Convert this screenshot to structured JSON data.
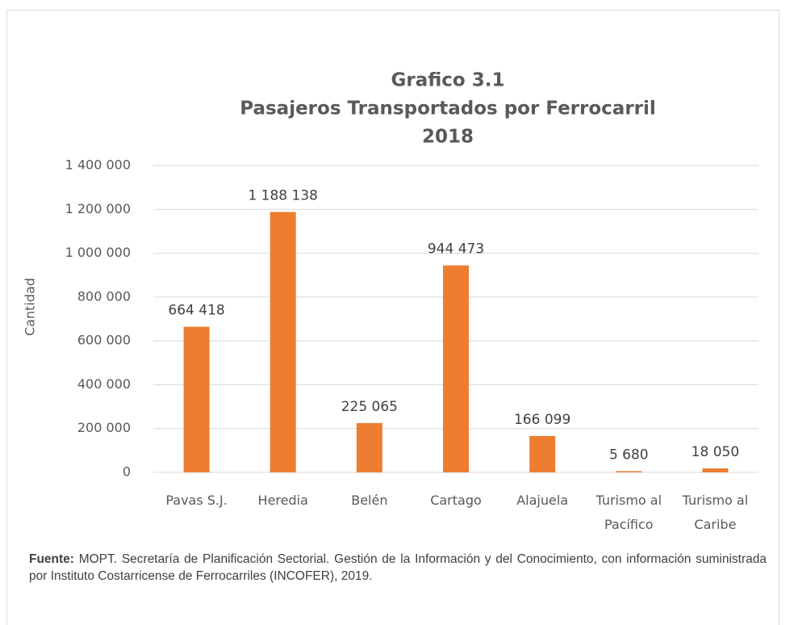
{
  "chart_data": {
    "type": "bar",
    "title_lines": [
      "Grafico 3.1",
      "Pasajeros Transportados por Ferrocarril",
      "2018"
    ],
    "y_label": "Cantidad",
    "categories": [
      "Pavas S.J.",
      "Heredia",
      "Belén",
      "Cartago",
      "Alajuela",
      "Turismo al Pacífico",
      "Turismo al Caribe"
    ],
    "values": [
      664418,
      1188138,
      225065,
      944473,
      166099,
      5680,
      18050
    ],
    "value_labels": [
      "664 418",
      "1 188 138",
      "225 065",
      "944 473",
      "166 099",
      "5 680",
      "18 050"
    ],
    "color": "#ed7d31",
    "ylim": [
      0,
      1400000
    ],
    "yticks": [
      0,
      {
        "value": 200000,
        "label": "200 000"
      },
      {
        "value": 400000,
        "label": "400 000"
      },
      {
        "value": 600000,
        "label": "600 000"
      },
      {
        "value": 800000,
        "label": "800 000"
      },
      {
        "value": 1000000,
        "label": "1 000 000"
      },
      {
        "value": 1200000,
        "label": "1 200 000"
      },
      {
        "value": 1400000,
        "label": "1 400 000"
      }
    ],
    "grid": true
  },
  "source": {
    "label": "Fuente:",
    "text": "MOPT. Secretaría de Planificación Sectorial. Gestión de la Información y del Conocimiento, con información suministrada por Instituto Costarricense de Ferrocarriles (INCOFER), 2019."
  }
}
